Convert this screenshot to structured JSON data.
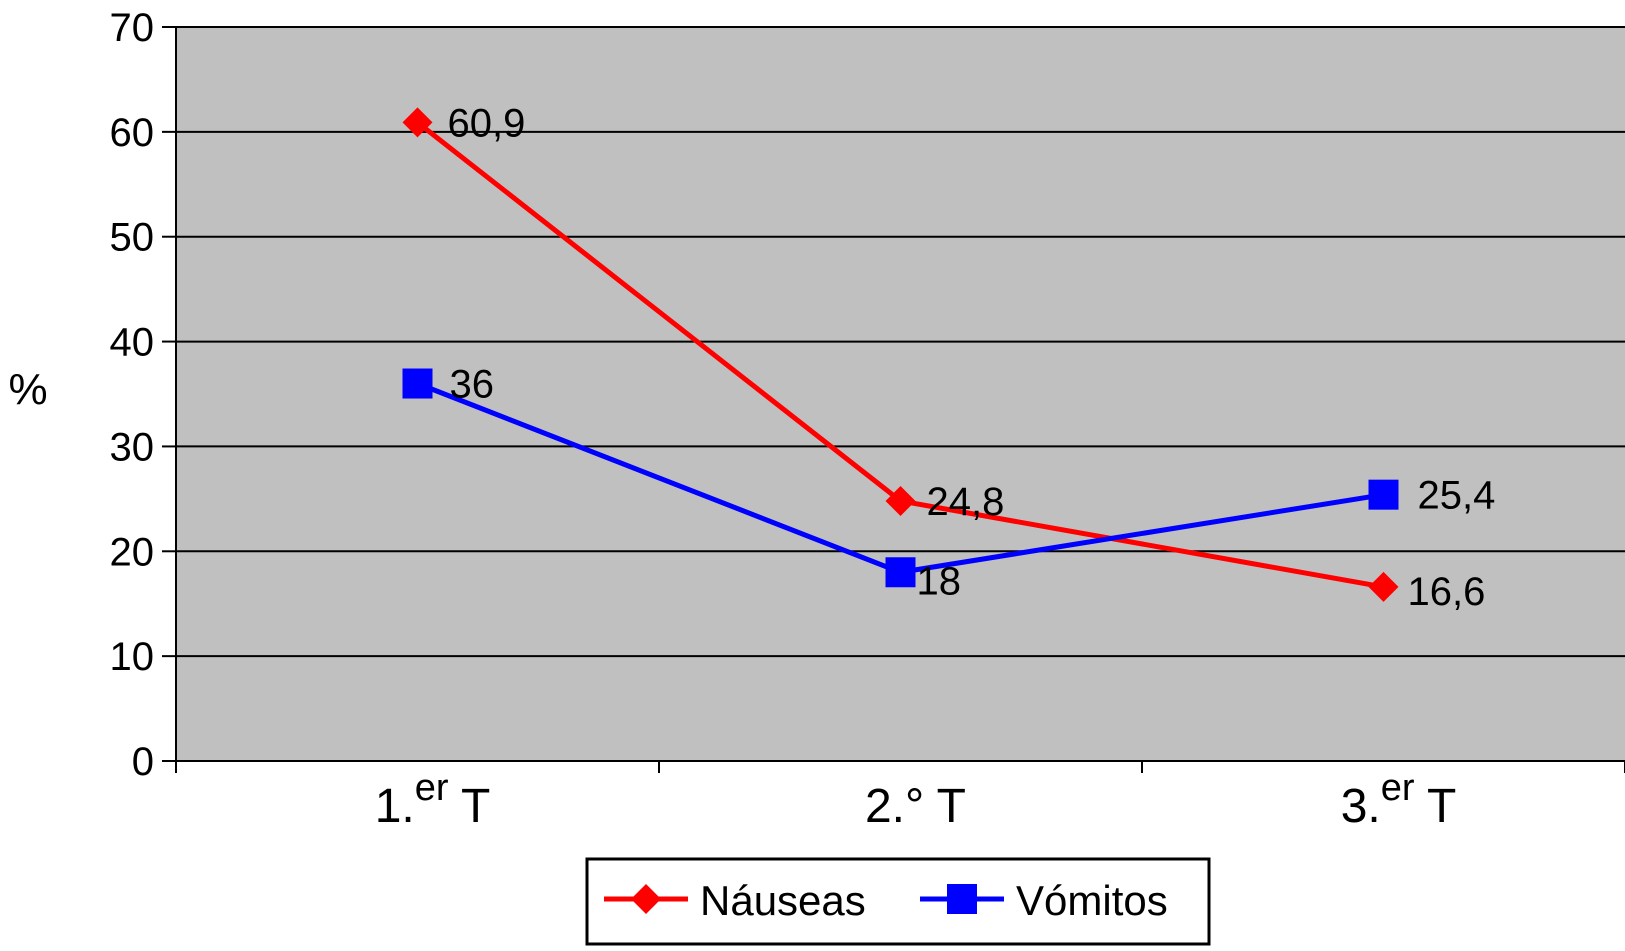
{
  "chart_data": {
    "type": "line",
    "categories": [
      {
        "main": "1.",
        "sup": "er",
        "suffix": " T"
      },
      {
        "main": "2.",
        "sup": "",
        "suffix": "° T"
      },
      {
        "main": "3.",
        "sup": "er",
        "suffix": " T"
      }
    ],
    "series": [
      {
        "name": "Náuseas",
        "values": [
          60.9,
          24.8,
          16.6
        ],
        "labels": [
          "60,9",
          "24,8",
          "16,6"
        ],
        "color": "#ff0000",
        "marker": "diamond"
      },
      {
        "name": "Vómitos",
        "values": [
          36,
          18,
          25.4
        ],
        "labels": [
          "36",
          "18",
          "25,4"
        ],
        "color": "#0000ff",
        "marker": "square"
      }
    ],
    "ylabel": "%",
    "ylim": [
      0,
      70
    ],
    "yticks": [
      0,
      10,
      20,
      30,
      40,
      50,
      60,
      70
    ],
    "grid": true,
    "plot_background": "#c0c0c0",
    "legend_position": "bottom-center"
  }
}
